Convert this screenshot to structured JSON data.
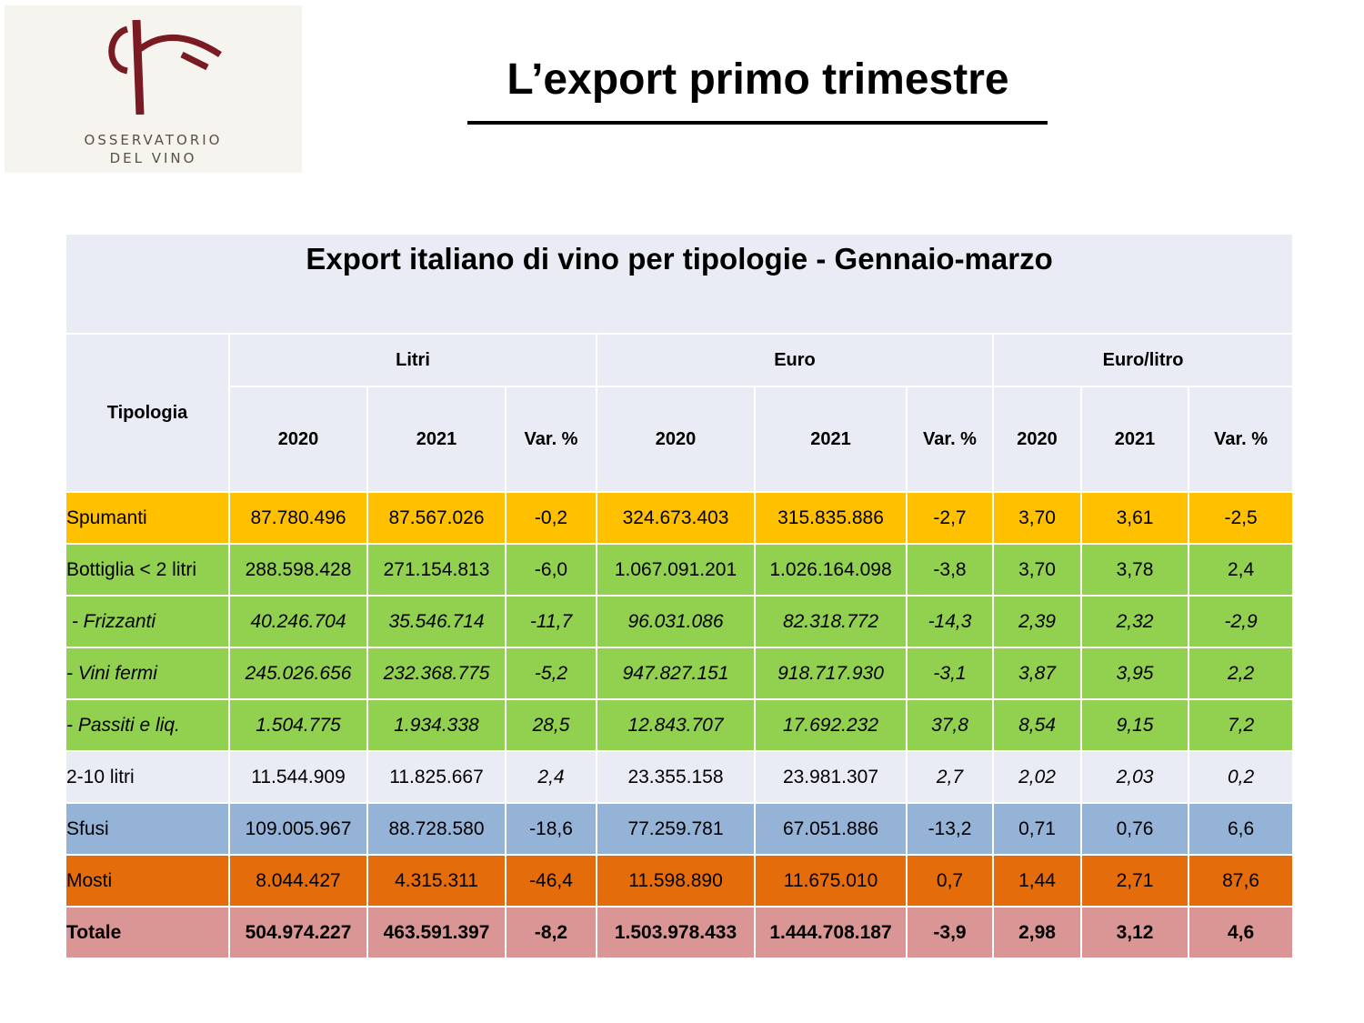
{
  "logo": {
    "line1": "OSSERVATORIO",
    "line2": "DEL VINO",
    "mark_color": "#7a1a22"
  },
  "page_title": "L’export primo trimestre",
  "table": {
    "caption": "Export italiano di vino per tipologie - Gennaio-marzo",
    "row_header": "Tipologia",
    "groups": [
      "Litri",
      "Euro",
      "Euro/litro"
    ],
    "subheaders": [
      "2020",
      "2021",
      "Var. %",
      "2020",
      "2021",
      "Var. %",
      "2020",
      "2021",
      "Var. %"
    ],
    "rows": [
      {
        "name": "Spumanti",
        "color": "#ffc000",
        "style": "normal",
        "values": [
          "87.780.496",
          "87.567.026",
          "-0,2",
          "324.673.403",
          "315.835.886",
          "-2,7",
          "3,70",
          "3,61",
          "-2,5"
        ]
      },
      {
        "name": "Bottiglia < 2 litri",
        "color": "#92d050",
        "style": "normal",
        "values": [
          "288.598.428",
          "271.154.813",
          "-6,0",
          "1.067.091.201",
          "1.026.164.098",
          "-3,8",
          "3,70",
          "3,78",
          "2,4"
        ]
      },
      {
        "name": " - Frizzanti",
        "color": "#92d050",
        "style": "italic",
        "values": [
          "40.246.704",
          "35.546.714",
          "-11,7",
          "96.031.086",
          "82.318.772",
          "-14,3",
          "2,39",
          "2,32",
          "-2,9"
        ]
      },
      {
        "name": "- Vini fermi",
        "color": "#92d050",
        "style": "italic",
        "values": [
          "245.026.656",
          "232.368.775",
          "-5,2",
          "947.827.151",
          "918.717.930",
          "-3,1",
          "3,87",
          "3,95",
          "2,2"
        ]
      },
      {
        "name": "- Passiti e liq.",
        "color": "#92d050",
        "style": "italic",
        "values": [
          "1.504.775",
          "1.934.338",
          "28,5",
          "12.843.707",
          "17.692.232",
          "37,8",
          "8,54",
          "9,15",
          "7,2"
        ]
      },
      {
        "name": "2-10 litri",
        "color": "#e9ebf5",
        "style": "mixed",
        "values": [
          "11.544.909",
          "11.825.667",
          "2,4",
          "23.355.158",
          "23.981.307",
          "2,7",
          "2,02",
          "2,03",
          "0,2"
        ]
      },
      {
        "name": "Sfusi",
        "color": "#95b3d7",
        "style": "normal",
        "values": [
          "109.005.967",
          "88.728.580",
          "-18,6",
          "77.259.781",
          "67.051.886",
          "-13,2",
          "0,71",
          "0,76",
          "6,6"
        ]
      },
      {
        "name": "Mosti",
        "color": "#e46c0a",
        "style": "normal",
        "values": [
          "8.044.427",
          "4.315.311",
          "-46,4",
          "11.598.890",
          "11.675.010",
          "0,7",
          "1,44",
          "2,71",
          "87,6"
        ]
      },
      {
        "name": "Totale",
        "color": "#da9694",
        "style": "bold",
        "values": [
          "504.974.227",
          "463.591.397",
          "-8,2",
          "1.503.978.433",
          "1.444.708.187",
          "-3,9",
          "2,98",
          "3,12",
          "4,6"
        ]
      }
    ]
  }
}
